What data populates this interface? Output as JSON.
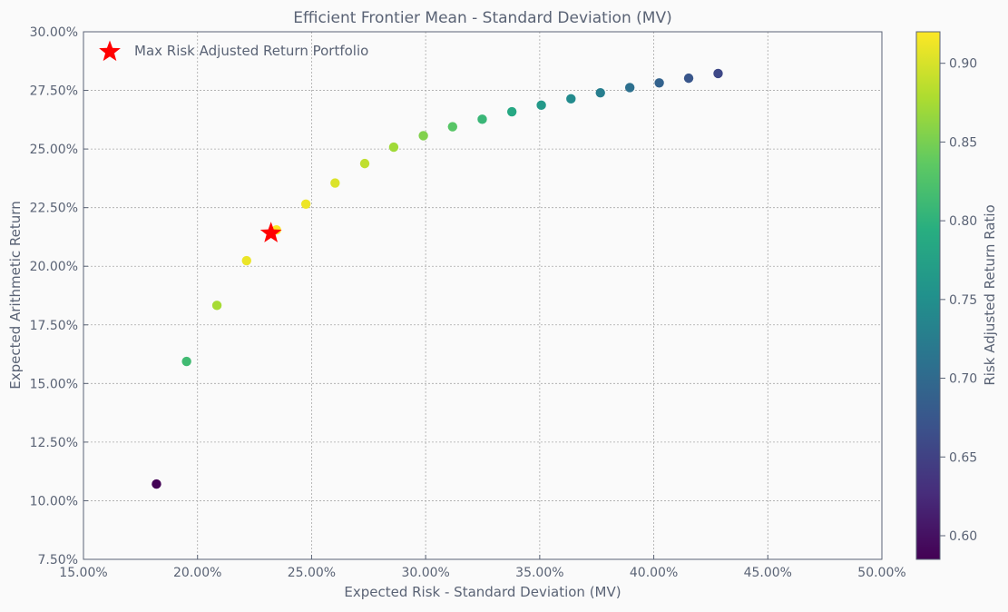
{
  "chart_data": {
    "type": "scatter",
    "title": "Efficient Frontier Mean - Standard Deviation (MV)",
    "xlabel": "Expected Risk - Standard Deviation (MV)",
    "ylabel": "Expected Arithmetic Return",
    "xlim": [
      0.15,
      0.5
    ],
    "ylim": [
      0.075,
      0.3
    ],
    "x_ticks": [
      0.15,
      0.2,
      0.25,
      0.3,
      0.35,
      0.4,
      0.45,
      0.5
    ],
    "y_ticks": [
      0.075,
      0.1,
      0.125,
      0.15,
      0.175,
      0.2,
      0.225,
      0.25,
      0.275,
      0.3
    ],
    "x_tick_labels": [
      "15.00%",
      "20.00%",
      "25.00%",
      "30.00%",
      "35.00%",
      "40.00%",
      "45.00%",
      "50.00%"
    ],
    "y_tick_labels": [
      "7.50%",
      "10.00%",
      "12.50%",
      "15.00%",
      "17.50%",
      "20.00%",
      "22.50%",
      "25.00%",
      "27.50%",
      "30.00%"
    ],
    "grid": true,
    "colorbar": {
      "label": "Risk Adjusted Return Ratio",
      "range": [
        0.585,
        0.92
      ],
      "ticks": [
        0.6,
        0.65,
        0.7,
        0.75,
        0.8,
        0.85,
        0.9
      ],
      "tick_labels": [
        "0.60",
        "0.65",
        "0.70",
        "0.75",
        "0.80",
        "0.85",
        "0.90"
      ],
      "colormap": "viridis"
    },
    "points": [
      {
        "x": 0.182,
        "y": 0.1071,
        "ratio": 0.587
      },
      {
        "x": 0.1952,
        "y": 0.1594,
        "ratio": 0.815
      },
      {
        "x": 0.2085,
        "y": 0.1833,
        "ratio": 0.876
      },
      {
        "x": 0.2215,
        "y": 0.2024,
        "ratio": 0.911
      },
      {
        "x": 0.2346,
        "y": 0.2155,
        "ratio": 0.919
      },
      {
        "x": 0.2475,
        "y": 0.2265,
        "ratio": 0.912
      },
      {
        "x": 0.2603,
        "y": 0.2355,
        "ratio": 0.903
      },
      {
        "x": 0.2733,
        "y": 0.2438,
        "ratio": 0.889
      },
      {
        "x": 0.286,
        "y": 0.2508,
        "ratio": 0.873
      },
      {
        "x": 0.299,
        "y": 0.2557,
        "ratio": 0.856
      },
      {
        "x": 0.3118,
        "y": 0.2595,
        "ratio": 0.832
      },
      {
        "x": 0.3248,
        "y": 0.2627,
        "ratio": 0.809
      },
      {
        "x": 0.3378,
        "y": 0.2659,
        "ratio": 0.787
      },
      {
        "x": 0.3507,
        "y": 0.2687,
        "ratio": 0.766
      },
      {
        "x": 0.3637,
        "y": 0.2714,
        "ratio": 0.746
      },
      {
        "x": 0.3766,
        "y": 0.274,
        "ratio": 0.728
      },
      {
        "x": 0.3895,
        "y": 0.2762,
        "ratio": 0.709
      },
      {
        "x": 0.4024,
        "y": 0.2782,
        "ratio": 0.691
      },
      {
        "x": 0.4153,
        "y": 0.2802,
        "ratio": 0.675
      },
      {
        "x": 0.4282,
        "y": 0.2822,
        "ratio": 0.659
      }
    ],
    "highlight": {
      "label": "Max Risk Adjusted Return Portfolio",
      "x": 0.2322,
      "y": 0.2141,
      "color": "#ff0000",
      "marker": "star"
    },
    "legend_position": "upper-left"
  }
}
